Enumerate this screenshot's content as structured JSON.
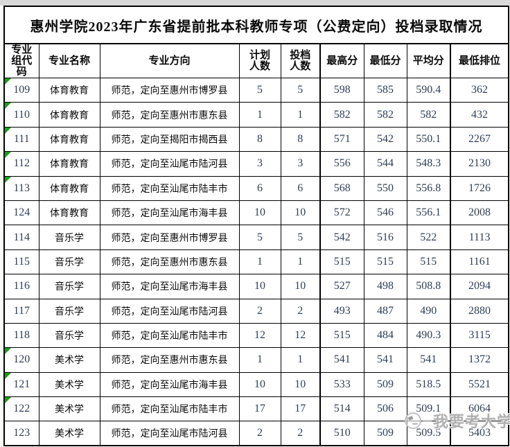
{
  "page": {
    "title": "惠州学院2023年广东省提前批本科教师专项（公费定向）投档录取情况"
  },
  "table": {
    "headers": [
      "专业组代码",
      "专业名称",
      "专业方向",
      "计划人数",
      "投档人数",
      "最高分",
      "最低分",
      "平均分",
      "最低排位"
    ],
    "rows": [
      {
        "cells": [
          "109",
          "体育教育",
          "师范，定向至惠州市博罗县",
          "5",
          "5",
          "598",
          "585",
          "590.4",
          "362"
        ],
        "marker": true
      },
      {
        "cells": [
          "110",
          "体育教育",
          "师范，定向至惠州市惠东县",
          "1",
          "1",
          "582",
          "582",
          "582",
          "432"
        ],
        "marker": true
      },
      {
        "cells": [
          "111",
          "体育教育",
          "师范，定向至揭阳市揭西县",
          "8",
          "8",
          "571",
          "542",
          "550.1",
          "2267"
        ],
        "marker": true
      },
      {
        "cells": [
          "112",
          "体育教育",
          "师范，定向至汕尾市陆河县",
          "3",
          "3",
          "556",
          "544",
          "548.3",
          "2130"
        ],
        "marker": true
      },
      {
        "cells": [
          "113",
          "体育教育",
          "师范，定向至汕尾市陆丰市",
          "6",
          "6",
          "568",
          "550",
          "556.8",
          "1726"
        ],
        "marker": true
      },
      {
        "cells": [
          "124",
          "体育教育",
          "师范，定向至汕尾市海丰县",
          "10",
          "10",
          "572",
          "546",
          "556.1",
          "2008"
        ],
        "marker": false
      },
      {
        "cells": [
          "114",
          "音乐学",
          "师范，定向至惠州市博罗县",
          "5",
          "5",
          "542",
          "516",
          "522",
          "1113"
        ],
        "marker": false
      },
      {
        "cells": [
          "115",
          "音乐学",
          "师范，定向至惠州市惠东县",
          "1",
          "1",
          "515",
          "515",
          "515",
          "1161"
        ],
        "marker": false
      },
      {
        "cells": [
          "116",
          "音乐学",
          "师范，定向至汕尾市海丰县",
          "10",
          "10",
          "527",
          "498",
          "508.8",
          "2094"
        ],
        "marker": false
      },
      {
        "cells": [
          "117",
          "音乐学",
          "师范，定向至汕尾市陆河县",
          "2",
          "2",
          "493",
          "487",
          "490",
          "2880"
        ],
        "marker": false
      },
      {
        "cells": [
          "118",
          "音乐学",
          "师范，定向至汕尾市陆丰市",
          "12",
          "12",
          "515",
          "484",
          "490.3",
          "3115"
        ],
        "marker": false
      },
      {
        "cells": [
          "120",
          "美术学",
          "师范，定向至惠州市惠东县",
          "1",
          "1",
          "541",
          "541",
          "541",
          "1372"
        ],
        "marker": true
      },
      {
        "cells": [
          "121",
          "美术学",
          "师范，定向至汕尾市海丰县",
          "10",
          "10",
          "533",
          "509",
          "518.5",
          "5521"
        ],
        "marker": true
      },
      {
        "cells": [
          "122",
          "美术学",
          "师范，定向至汕尾市陆丰市",
          "17",
          "17",
          "514",
          "506",
          "509.1",
          "6064"
        ],
        "marker": true
      },
      {
        "cells": [
          "123",
          "美术学",
          "师范，定向至汕尾市陆河县",
          "2",
          "2",
          "510",
          "509",
          "509.5",
          "5403"
        ],
        "marker": false
      }
    ]
  },
  "watermark": {
    "text": "我要考大学",
    "logo": "graduation-logo-icon"
  },
  "colors": {
    "marker_green": "#17a017",
    "number_text": "#2f3e57",
    "border_black": "#000000",
    "watermark_gray": "#b0b0b0",
    "top_strip_gray": "#d9d9d9"
  }
}
